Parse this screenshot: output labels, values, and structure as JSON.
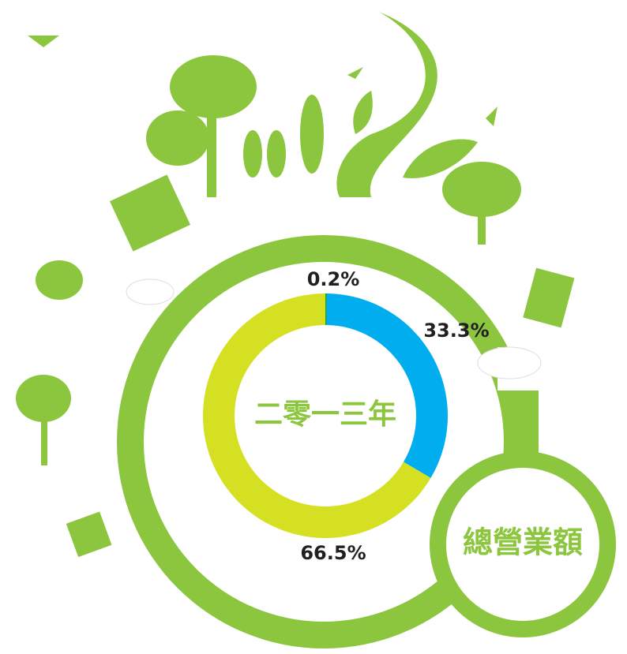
{
  "chart_data": {
    "type": "donut",
    "title": "總營業額",
    "center_label": "二零一三年",
    "categories": [
      null,
      null,
      null
    ],
    "values": [
      0.2,
      33.3,
      66.5
    ],
    "value_labels": [
      "0.2%",
      "33.3%",
      "66.5%"
    ],
    "colors": [
      "#1a9a3c",
      "#00aeef",
      "#d4e021"
    ]
  }
}
